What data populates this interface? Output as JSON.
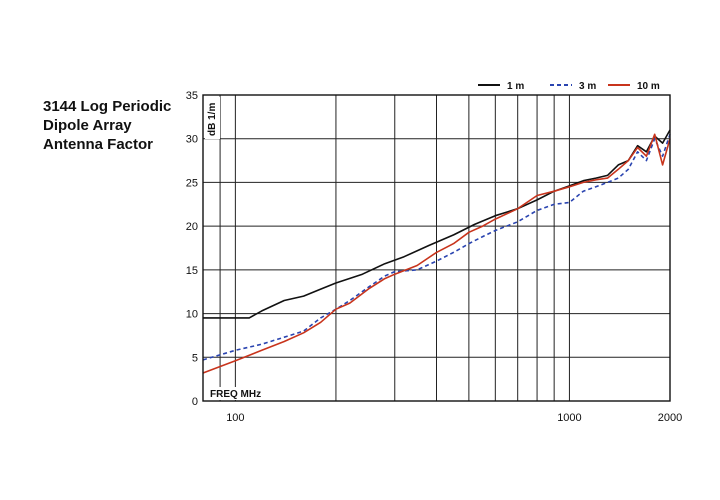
{
  "chart_data": {
    "type": "line",
    "title_lines": [
      "3144 Log Periodic",
      "Dipole Array",
      "Antenna Factor"
    ],
    "ylabel": "dB 1/m",
    "xlabel": "FREQ  MHz",
    "x_scale": "log",
    "xlim": [
      80,
      2000
    ],
    "ylim": [
      0,
      35
    ],
    "yticks": [
      0,
      5,
      10,
      15,
      20,
      25,
      30,
      35
    ],
    "xtick_labels": [
      {
        "value": 100,
        "label": "100"
      },
      {
        "value": 1000,
        "label": "1000"
      },
      {
        "value": 2000,
        "label": "2000"
      }
    ],
    "x_gridlines": [
      80,
      90,
      100,
      200,
      300,
      400,
      500,
      600,
      700,
      800,
      900,
      1000,
      2000
    ],
    "grid": true,
    "legend_position": "top-right",
    "series": [
      {
        "name": "1 m",
        "color": "#111111",
        "dash": "solid",
        "x": [
          80,
          100,
          110,
          120,
          140,
          160,
          180,
          200,
          240,
          280,
          320,
          380,
          450,
          520,
          600,
          700,
          800,
          900,
          1000,
          1100,
          1200,
          1300,
          1400,
          1500,
          1600,
          1700,
          1800,
          1900,
          2000
        ],
        "y": [
          9.5,
          9.5,
          9.5,
          10.3,
          11.5,
          12.0,
          12.8,
          13.5,
          14.5,
          15.7,
          16.5,
          17.8,
          19.0,
          20.2,
          21.2,
          22.0,
          23.0,
          24.0,
          24.6,
          25.2,
          25.5,
          25.8,
          27.0,
          27.5,
          29.2,
          28.5,
          30.3,
          29.5,
          31.0
        ]
      },
      {
        "name": "3 m",
        "color": "#2a44b0",
        "dash": "dashed",
        "x": [
          80,
          100,
          120,
          140,
          160,
          180,
          200,
          220,
          250,
          280,
          300,
          350,
          400,
          450,
          500,
          550,
          600,
          700,
          800,
          900,
          1000,
          1100,
          1200,
          1300,
          1400,
          1500,
          1600,
          1700,
          1800,
          1900,
          2000
        ],
        "y": [
          4.7,
          5.8,
          6.5,
          7.3,
          8.0,
          9.5,
          10.5,
          11.5,
          13.0,
          14.3,
          14.8,
          15.0,
          16.0,
          17.0,
          18.0,
          18.8,
          19.5,
          20.5,
          21.8,
          22.5,
          22.7,
          24.0,
          24.5,
          25.0,
          25.5,
          26.5,
          28.5,
          27.5,
          30.0,
          28.0,
          30.5
        ]
      },
      {
        "name": "10 m",
        "color": "#c8341c",
        "dash": "solid",
        "x": [
          80,
          100,
          120,
          140,
          160,
          180,
          200,
          220,
          250,
          280,
          300,
          350,
          400,
          450,
          500,
          550,
          600,
          700,
          800,
          900,
          1000,
          1100,
          1200,
          1300,
          1400,
          1500,
          1600,
          1700,
          1800,
          1900,
          2000
        ],
        "y": [
          3.2,
          4.6,
          5.8,
          6.8,
          7.8,
          9.0,
          10.5,
          11.2,
          12.8,
          14.0,
          14.5,
          15.5,
          17.0,
          18.0,
          19.3,
          20.0,
          20.8,
          22.0,
          23.5,
          24.0,
          24.5,
          25.0,
          25.3,
          25.5,
          26.5,
          27.5,
          29.0,
          28.0,
          30.5,
          27.0,
          30.0
        ]
      }
    ]
  }
}
